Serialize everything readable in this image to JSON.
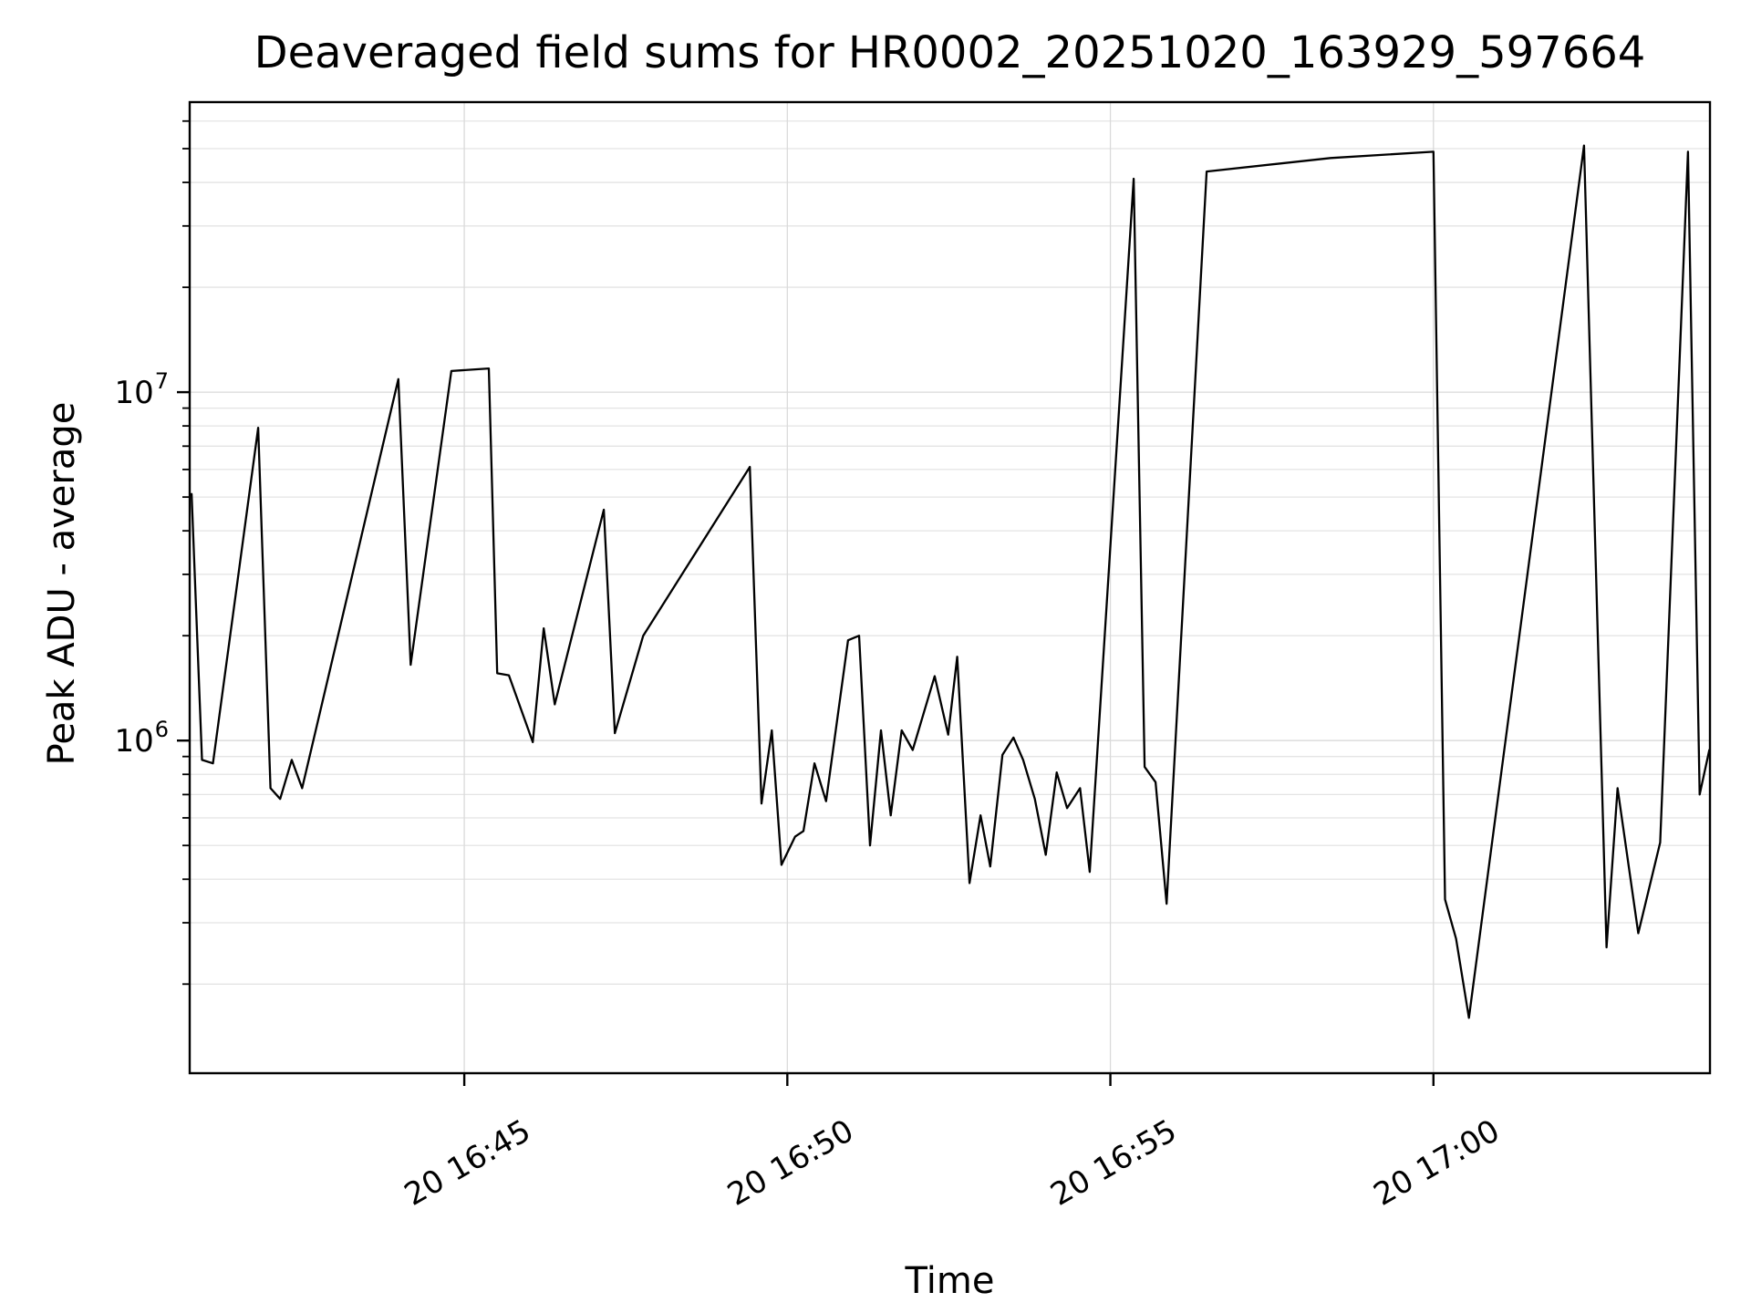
{
  "title": "Deaveraged field sums for HR0002_20251020_163929_597664",
  "colors": {
    "line": "#000000",
    "grid_minor": "#e4e4e4",
    "grid_major": "#dadada",
    "spine": "#000000",
    "text": "#000000",
    "background": "#ffffff"
  },
  "chart_data": {
    "type": "line",
    "title": "Deaveraged field sums for HR0002_20251020_163929_597664",
    "xlabel": "Time",
    "ylabel": "Peak ADU - average",
    "yscale": "log",
    "ylim": [
      111000,
      68000000
    ],
    "x_min_minutes": 40.75,
    "x_max_minutes": 64.28,
    "grid": {
      "horizontal": "major+minor",
      "vertical": "major"
    },
    "legend": "none",
    "x_ticks": [
      {
        "minutes": 45,
        "label": "20 16:45"
      },
      {
        "minutes": 50,
        "label": "20 16:50"
      },
      {
        "minutes": 55,
        "label": "20 16:55"
      },
      {
        "minutes": 60,
        "label": "20 17:00"
      }
    ],
    "y_ticks": [
      {
        "value": 1000000,
        "base": "10",
        "exp": "6"
      },
      {
        "value": 10000000,
        "base": "10",
        "exp": "7"
      }
    ],
    "series": [
      {
        "name": "series",
        "color": "#000000",
        "x_minutes_past_16h": [
          40.78,
          40.94,
          41.11,
          41.81,
          42.0,
          42.15,
          42.33,
          42.49,
          43.98,
          44.17,
          44.8,
          45.38,
          45.51,
          45.69,
          46.06,
          46.23,
          46.4,
          47.16,
          47.33,
          47.77,
          49.42,
          49.6,
          49.76,
          49.91,
          50.12,
          50.25,
          50.42,
          50.6,
          50.94,
          51.11,
          51.28,
          51.45,
          51.6,
          51.77,
          51.94,
          52.28,
          52.49,
          52.63,
          52.82,
          52.99,
          53.14,
          53.33,
          53.5,
          53.65,
          53.83,
          54.0,
          54.17,
          54.33,
          54.53,
          54.68,
          55.36,
          55.53,
          55.7,
          55.87,
          56.49,
          58.41,
          60.0,
          60.18,
          60.35,
          60.55,
          62.33,
          62.68,
          62.85,
          63.17,
          63.51,
          63.94,
          64.12,
          64.27
        ],
        "values_adu": [
          5100000,
          880000,
          860000,
          7900000,
          730000,
          680000,
          880000,
          730000,
          10900000,
          1650000,
          11500000,
          11700000,
          1560000,
          1540000,
          990000,
          2100000,
          1270000,
          4600000,
          1050000,
          2000000,
          6100000,
          660000,
          1070000,
          440000,
          530000,
          550000,
          860000,
          670000,
          1940000,
          2000000,
          500000,
          1070000,
          610000,
          1070000,
          940000,
          1530000,
          1040000,
          1740000,
          390000,
          610000,
          435000,
          910000,
          1020000,
          880000,
          680000,
          470000,
          810000,
          640000,
          730000,
          420000,
          41000000,
          840000,
          760000,
          340000,
          43000000,
          47000000,
          49000000,
          350000,
          270000,
          160000,
          51000000,
          255000,
          730000,
          280000,
          510000,
          49000000,
          700000,
          940000
        ]
      }
    ]
  }
}
